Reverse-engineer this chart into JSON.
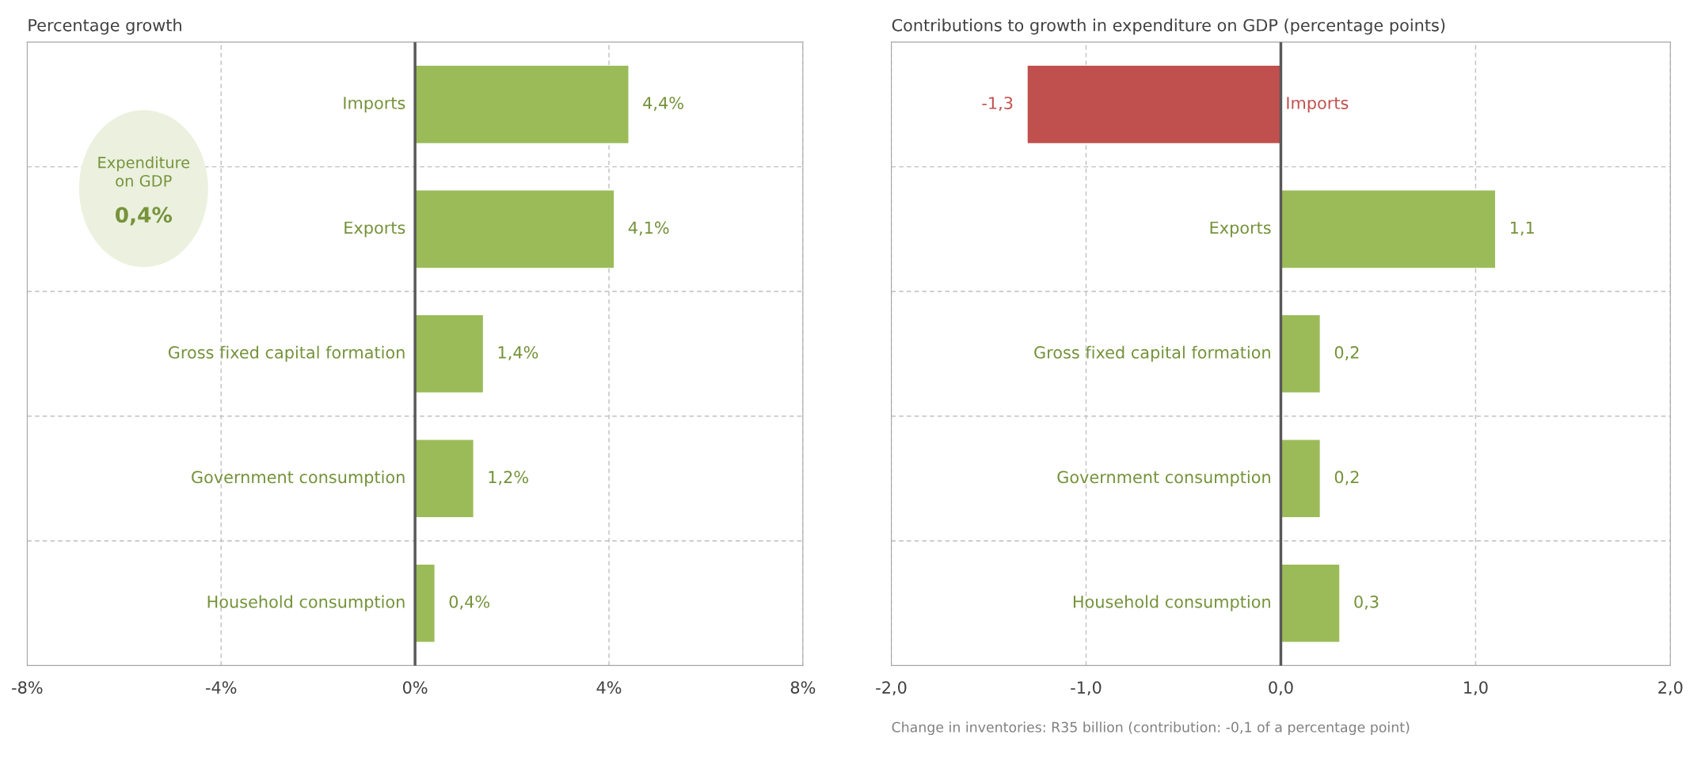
{
  "chart_data": [
    {
      "type": "bar",
      "orientation": "horizontal",
      "title": "Percentage growth",
      "categories": [
        "Imports",
        "Exports",
        "Gross fixed capital formation",
        "Government consumption",
        "Household consumption"
      ],
      "values": [
        4.4,
        4.1,
        1.4,
        1.2,
        0.4
      ],
      "value_labels": [
        "4,4%",
        "4,1%",
        "1,4%",
        "1,2%",
        "0,4%"
      ],
      "colors": [
        "#9bbb59",
        "#9bbb59",
        "#9bbb59",
        "#9bbb59",
        "#9bbb59"
      ],
      "xlim": [
        -8,
        8
      ],
      "xticks": [
        {
          "value": -8,
          "label": "-8%"
        },
        {
          "value": -4,
          "label": "-4%"
        },
        {
          "value": 0,
          "label": "0%"
        },
        {
          "value": 4,
          "label": "4%"
        },
        {
          "value": 8,
          "label": "8%"
        }
      ],
      "grid": true,
      "legend": false,
      "annotations": [
        "Expenditure\non GDP",
        "0,4%"
      ]
    },
    {
      "type": "bar",
      "orientation": "horizontal",
      "title": "Contributions to growth in expenditure on GDP (percentage points)",
      "categories": [
        "Imports",
        "Exports",
        "Gross fixed capital formation",
        "Government consumption",
        "Household consumption"
      ],
      "values": [
        -1.3,
        1.1,
        0.2,
        0.2,
        0.3
      ],
      "value_labels": [
        "-1,3",
        "1,1",
        "0,2",
        "0,2",
        "0,3"
      ],
      "colors": [
        "#c0504d",
        "#9bbb59",
        "#9bbb59",
        "#9bbb59",
        "#9bbb59"
      ],
      "xlim": [
        -2,
        2
      ],
      "xticks": [
        {
          "value": -2,
          "label": "-2,0"
        },
        {
          "value": -1,
          "label": "-1,0"
        },
        {
          "value": 0,
          "label": "0,0"
        },
        {
          "value": 1,
          "label": "1,0"
        },
        {
          "value": 2,
          "label": "2,0"
        }
      ],
      "grid": true,
      "legend": false,
      "annotations": [
        "Change in inventories: R35 billion (contribution: -0,1 of a percentage point)"
      ]
    }
  ]
}
